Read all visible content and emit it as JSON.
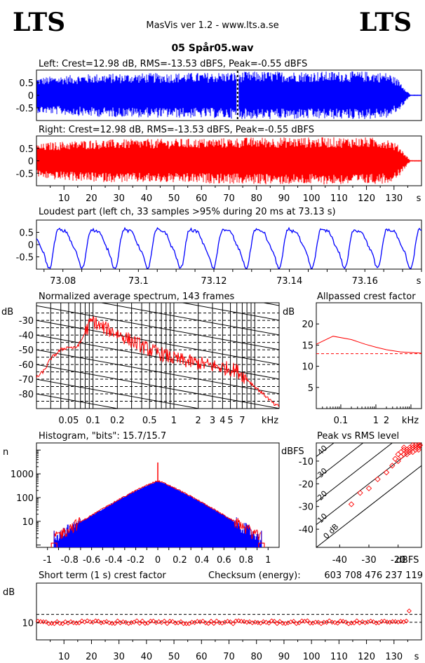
{
  "header": {
    "logo_left": "LTS",
    "logo_right": "LTS",
    "app_title": "MasVis ver 1.2 - www.lts.a.se",
    "file_title": "05 Spår05.wav"
  },
  "colors": {
    "left": "#0000ff",
    "right": "#ff0000",
    "grid": "#000000"
  },
  "chart_data": [
    {
      "id": "left-waveform",
      "type": "area",
      "title": "Left: Crest=12.98 dB, RMS=-13.53 dBFS, Peak=-0.55 dBFS",
      "yticks": [
        "0.5",
        "0",
        "-0.5"
      ],
      "ylim": [
        -1,
        1
      ],
      "xlim": [
        0,
        140
      ],
      "marker_x": 73.13,
      "envelope": {
        "x": [
          0,
          5,
          20,
          40,
          60,
          80,
          100,
          120,
          128,
          132,
          135,
          136
        ],
        "amp": [
          0.7,
          0.75,
          0.85,
          0.88,
          0.9,
          0.95,
          0.95,
          0.95,
          0.9,
          0.6,
          0.15,
          0.02
        ]
      }
    },
    {
      "id": "right-waveform",
      "type": "area",
      "title": "Right: Crest=12.98 dB, RMS=-13.53 dBFS, Peak=-0.55 dBFS",
      "yticks": [
        "0.5",
        "0",
        "-0.5"
      ],
      "ylim": [
        -1,
        1
      ],
      "xlim": [
        0,
        140
      ],
      "xticks": [
        "10",
        "20",
        "30",
        "40",
        "50",
        "60",
        "70",
        "80",
        "90",
        "100",
        "110",
        "120",
        "130"
      ],
      "xunit": "s",
      "envelope": {
        "x": [
          0,
          5,
          20,
          40,
          60,
          80,
          100,
          120,
          128,
          132,
          135,
          136
        ],
        "amp": [
          0.65,
          0.75,
          0.85,
          0.88,
          0.9,
          0.95,
          0.95,
          0.95,
          0.9,
          0.6,
          0.15,
          0.02
        ]
      }
    },
    {
      "id": "loudest-part",
      "type": "line",
      "title": "Loudest part (left  ch, 33 samples >95% during 20 ms at 73.13 s)",
      "yticks": [
        "0.5",
        "0",
        "-0.5"
      ],
      "ylim": [
        -1,
        1
      ],
      "xlim": [
        73.073,
        73.175
      ],
      "xticks": [
        "73.08",
        "73.1",
        "73.12",
        "73.14",
        "73.16"
      ],
      "xunit": "s",
      "period_ms": 8.7
    },
    {
      "id": "average-spectrum",
      "type": "line",
      "title": "Normalized average spectrum, 143 frames",
      "ylabel": "dB",
      "yticks": [
        "-30",
        "-40",
        "-50",
        "-60",
        "-70",
        "-80"
      ],
      "ylim": [
        -90,
        -18
      ],
      "xscale": "log",
      "xlim": [
        0.02,
        20
      ],
      "xticks": [
        "0.05",
        "0.1",
        "0.2",
        "0.5",
        "1",
        "2",
        "3",
        "4",
        "5",
        "7"
      ],
      "xunit": "kHz",
      "points": [
        [
          0.02,
          -69
        ],
        [
          0.025,
          -64
        ],
        [
          0.03,
          -56
        ],
        [
          0.04,
          -50
        ],
        [
          0.05,
          -48
        ],
        [
          0.06,
          -49
        ],
        [
          0.07,
          -45
        ],
        [
          0.08,
          -38
        ],
        [
          0.09,
          -33
        ],
        [
          0.1,
          -30
        ],
        [
          0.12,
          -34
        ],
        [
          0.15,
          -36
        ],
        [
          0.2,
          -39
        ],
        [
          0.3,
          -44
        ],
        [
          0.5,
          -50
        ],
        [
          0.8,
          -54
        ],
        [
          1,
          -56
        ],
        [
          1.5,
          -58
        ],
        [
          2,
          -59
        ],
        [
          3,
          -61
        ],
        [
          4,
          -62
        ],
        [
          5,
          -63
        ],
        [
          6,
          -64
        ],
        [
          7,
          -67
        ],
        [
          8,
          -70
        ],
        [
          10,
          -75
        ],
        [
          14,
          -82
        ],
        [
          18,
          -88
        ]
      ]
    },
    {
      "id": "allpassed-crest",
      "type": "line",
      "title": "Allpassed crest factor",
      "ylabel": "dB",
      "yticks": [
        "20",
        "15",
        "10",
        "5"
      ],
      "ylim": [
        0,
        25
      ],
      "xscale": "log",
      "xlim": [
        0.02,
        20
      ],
      "xticks": [
        "0.1",
        "1",
        "2"
      ],
      "xunit": "kHz",
      "points": [
        [
          0.02,
          15.2
        ],
        [
          0.06,
          17.1
        ],
        [
          0.2,
          16.3
        ],
        [
          0.5,
          15.2
        ],
        [
          1,
          14.5
        ],
        [
          2,
          13.9
        ],
        [
          5,
          13.4
        ],
        [
          20,
          13.1
        ]
      ],
      "reference": 12.98
    },
    {
      "id": "histogram",
      "type": "bar",
      "title": "Histogram, \"bits\": 15.7/15.7",
      "ylabel": "n",
      "yscale": "log",
      "yticks": [
        "1000",
        "100",
        "10"
      ],
      "ylim": [
        0.8,
        20000
      ],
      "xlim": [
        -1.1,
        1.1
      ],
      "xticks": [
        "-1",
        "-0.8",
        "-0.6",
        "-0.4",
        "-0.2",
        "0",
        "0.2",
        "0.4",
        "0.6",
        "0.8",
        "1"
      ],
      "center_count": 500,
      "center_spike": 3000,
      "edge_x": 0.94,
      "edge_count": 4
    },
    {
      "id": "peak-vs-rms",
      "type": "scatter",
      "title": "Peak vs RMS level",
      "ylabel": "dBFS",
      "xlabel": "dBFS",
      "yticks": [
        "-10",
        "-20",
        "-30",
        "-40"
      ],
      "ylim": [
        -48,
        -2
      ],
      "xticks": [
        "-40",
        "-30",
        "-20"
      ],
      "xlim": [
        -48,
        -12
      ],
      "diagonals": [
        "40",
        "30",
        "20",
        "10",
        "0 dB"
      ],
      "points": [
        [
          -36,
          -29
        ],
        [
          -33,
          -24
        ],
        [
          -30,
          -22
        ],
        [
          -27,
          -18
        ],
        [
          -24,
          -15
        ],
        [
          -22,
          -12
        ],
        [
          -20,
          -10
        ],
        [
          -19,
          -8
        ],
        [
          -18,
          -7
        ],
        [
          -17,
          -6
        ],
        [
          -16,
          -5
        ],
        [
          -15,
          -4
        ],
        [
          -14,
          -4
        ],
        [
          -13,
          -3
        ],
        [
          -19,
          -6
        ],
        [
          -17,
          -5
        ],
        [
          -16,
          -4
        ],
        [
          -15,
          -3
        ],
        [
          -14,
          -3
        ],
        [
          -18,
          -5
        ],
        [
          -16,
          -6
        ],
        [
          -13,
          -4
        ],
        [
          -14,
          -5
        ],
        [
          -12.5,
          -3
        ],
        [
          -15,
          -6
        ],
        [
          -17,
          -7
        ],
        [
          -18,
          -4
        ],
        [
          -20,
          -7
        ],
        [
          -21,
          -9
        ],
        [
          -13,
          -5
        ]
      ]
    },
    {
      "id": "short-term-crest",
      "type": "scatter",
      "title": "Short term (1 s) crest factor",
      "checksum_label": "Checksum (energy):",
      "checksum_value": "603 708 476 237 119",
      "ylabel": "dB",
      "yticks": [
        "10"
      ],
      "ylim": [
        4,
        24
      ],
      "xlim": [
        0,
        140
      ],
      "xticks": [
        "10",
        "20",
        "30",
        "40",
        "50",
        "60",
        "70",
        "80",
        "90",
        "100",
        "110",
        "120",
        "130"
      ],
      "xunit": "s",
      "reference": 12.98,
      "mean": 10.2,
      "last_value": 14.2
    }
  ]
}
